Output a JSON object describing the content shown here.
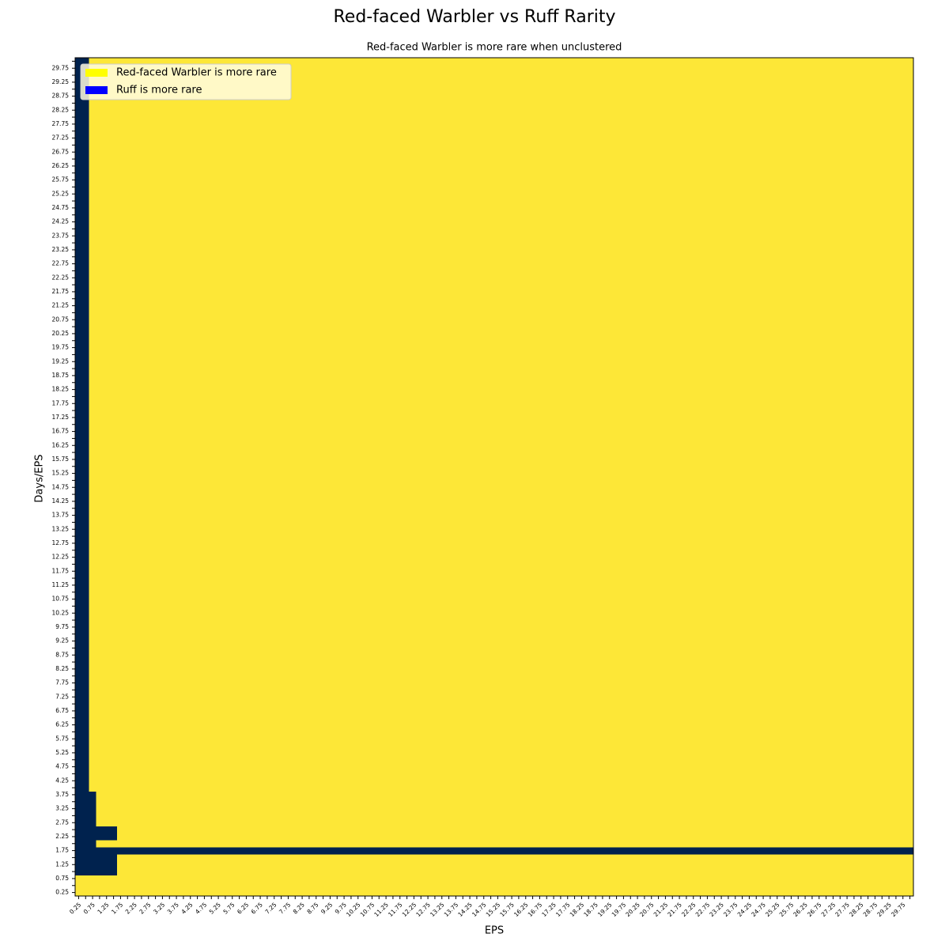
{
  "chart_data": {
    "type": "heatmap",
    "title": "Red-faced Warbler vs Ruff Rarity",
    "subtitle": "Red-faced Warbler is more rare when unclustered",
    "xlabel": "EPS",
    "ylabel": "Days/EPS",
    "legend": [
      {
        "name": "Red-faced Warbler is more rare",
        "color": "#ffff00"
      },
      {
        "name": "Ruff is more rare",
        "color": "#0000ff"
      }
    ],
    "legend_position": "upper left",
    "cell_colors": [
      "#fde737",
      "#00224e"
    ],
    "x": [
      0.25,
      null,
      0.75,
      null,
      1.25,
      null,
      1.75,
      null,
      2.25,
      null,
      2.75,
      null,
      3.25,
      null,
      3.75,
      null,
      4.25,
      null,
      4.75,
      null,
      5.25,
      null,
      5.75,
      null,
      6.25,
      null,
      6.75,
      null,
      7.25,
      null,
      7.75,
      null,
      8.25,
      null,
      8.75,
      null,
      9.25,
      null,
      9.75,
      null,
      10.25,
      null,
      10.75,
      null,
      11.25,
      null,
      11.75,
      null,
      12.25,
      null,
      12.75,
      null,
      13.25,
      null,
      13.75,
      null,
      14.25,
      null,
      14.75,
      null,
      15.25,
      null,
      15.75,
      null,
      16.25,
      null,
      16.75,
      null,
      17.25,
      null,
      17.75,
      null,
      18.25,
      null,
      18.75,
      null,
      19.25,
      null,
      19.75,
      null,
      20.25,
      null,
      20.75,
      null,
      21.25,
      null,
      21.75,
      null,
      22.25,
      null,
      22.75,
      null,
      23.25,
      null,
      23.75,
      null,
      24.25,
      null,
      24.75,
      null,
      25.25,
      null,
      25.75,
      null,
      26.25,
      null,
      26.75,
      null,
      27.25,
      null,
      27.75,
      null,
      28.25,
      null,
      28.75,
      null,
      29.25,
      null,
      29.75,
      null
    ],
    "y": [
      0.25,
      null,
      0.75,
      null,
      1.25,
      null,
      1.75,
      null,
      2.25,
      null,
      2.75,
      null,
      3.25,
      null,
      3.75,
      null,
      4.25,
      null,
      4.75,
      null,
      5.25,
      null,
      5.75,
      null,
      6.25,
      null,
      6.75,
      null,
      7.25,
      null,
      7.75,
      null,
      8.25,
      null,
      8.75,
      null,
      9.25,
      null,
      9.75,
      null,
      10.25,
      null,
      10.75,
      null,
      11.25,
      null,
      11.75,
      null,
      12.25,
      null,
      12.75,
      null,
      13.25,
      null,
      13.75,
      null,
      14.25,
      null,
      14.75,
      null,
      15.25,
      null,
      15.75,
      null,
      16.25,
      null,
      16.75,
      null,
      17.25,
      null,
      17.75,
      null,
      18.25,
      null,
      18.75,
      null,
      19.25,
      null,
      19.75,
      null,
      20.25,
      null,
      20.75,
      null,
      21.25,
      null,
      21.75,
      null,
      22.25,
      null,
      22.75,
      null,
      23.25,
      null,
      23.75,
      null,
      24.25,
      null,
      24.75,
      null,
      25.25,
      null,
      25.75,
      null,
      26.25,
      null,
      26.75,
      null,
      27.25,
      null,
      27.75,
      null,
      28.25,
      null,
      28.75,
      null,
      29.25,
      null,
      29.75,
      null
    ],
    "z": [
      "000000000000000000000000000000000000000000000000000000000000000000000000000000000000000000000000000000000000000000000000",
      "000000000000000000000000000000000000000000000000000000000000000000000000000000000000000000000000000000000000000000000000",
      "000000000000000000000000000000000000000000000000000000000000000000000000000000000000000000000000000000000000000000000000",
      "111111000000000000000000000000000000000000000000000000000000000000000000000000000000000000000000000000000000000000000000",
      "111111000000000000000000000000000000000000000000000000000000000000000000000000000000000000000000000000000000000000000000",
      "111111000000000000000000000000000000000000000000000000000000000000000000000000000000000000000000000000000000000000000000",
      "111111111111111111111111111111111111111111111111111111111111111111111111111111111111111111111111111111111111111111111111",
      "111000000000000000000000000000000000000000000000000000000000000000000000000000000000000000000000000000000000000000000000",
      "111111000000000000000000000000000000000000000000000000000000000000000000000000000000000000000000000000000000000000000000",
      "111111000000000000000000000000000000000000000000000000000000000000000000000000000000000000000000000000000000000000000000",
      "111000000000000000000000000000000000000000000000000000000000000000000000000000000000000000000000000000000000000000000000",
      "111000000000000000000000000000000000000000000000000000000000000000000000000000000000000000000000000000000000000000000000",
      "111000000000000000000000000000000000000000000000000000000000000000000000000000000000000000000000000000000000000000000000",
      "111000000000000000000000000000000000000000000000000000000000000000000000000000000000000000000000000000000000000000000000",
      "111000000000000000000000000000000000000000000000000000000000000000000000000000000000000000000000000000000000000000000000",
      "110000000000000000000000000000000000000000000000000000000000000000000000000000000000000000000000000000000000000000000000",
      "110000000000000000000000000000000000000000000000000000000000000000000000000000000000000000000000000000000000000000000000",
      "110000000000000000000000000000000000000000000000000000000000000000000000000000000000000000000000000000000000000000000000",
      "110000000000000000000000000000000000000000000000000000000000000000000000000000000000000000000000000000000000000000000000",
      "110000000000000000000000000000000000000000000000000000000000000000000000000000000000000000000000000000000000000000000000",
      "110000000000000000000000000000000000000000000000000000000000000000000000000000000000000000000000000000000000000000000000",
      "110000000000000000000000000000000000000000000000000000000000000000000000000000000000000000000000000000000000000000000000",
      "110000000000000000000000000000000000000000000000000000000000000000000000000000000000000000000000000000000000000000000000",
      "110000000000000000000000000000000000000000000000000000000000000000000000000000000000000000000000000000000000000000000000",
      "110000000000000000000000000000000000000000000000000000000000000000000000000000000000000000000000000000000000000000000000",
      "110000000000000000000000000000000000000000000000000000000000000000000000000000000000000000000000000000000000000000000000",
      "110000000000000000000000000000000000000000000000000000000000000000000000000000000000000000000000000000000000000000000000",
      "110000000000000000000000000000000000000000000000000000000000000000000000000000000000000000000000000000000000000000000000",
      "110000000000000000000000000000000000000000000000000000000000000000000000000000000000000000000000000000000000000000000000",
      "110000000000000000000000000000000000000000000000000000000000000000000000000000000000000000000000000000000000000000000000",
      "110000000000000000000000000000000000000000000000000000000000000000000000000000000000000000000000000000000000000000000000",
      "110000000000000000000000000000000000000000000000000000000000000000000000000000000000000000000000000000000000000000000000",
      "110000000000000000000000000000000000000000000000000000000000000000000000000000000000000000000000000000000000000000000000",
      "110000000000000000000000000000000000000000000000000000000000000000000000000000000000000000000000000000000000000000000000",
      "110000000000000000000000000000000000000000000000000000000000000000000000000000000000000000000000000000000000000000000000",
      "110000000000000000000000000000000000000000000000000000000000000000000000000000000000000000000000000000000000000000000000",
      "110000000000000000000000000000000000000000000000000000000000000000000000000000000000000000000000000000000000000000000000",
      "110000000000000000000000000000000000000000000000000000000000000000000000000000000000000000000000000000000000000000000000",
      "110000000000000000000000000000000000000000000000000000000000000000000000000000000000000000000000000000000000000000000000",
      "110000000000000000000000000000000000000000000000000000000000000000000000000000000000000000000000000000000000000000000000",
      "110000000000000000000000000000000000000000000000000000000000000000000000000000000000000000000000000000000000000000000000",
      "110000000000000000000000000000000000000000000000000000000000000000000000000000000000000000000000000000000000000000000000",
      "110000000000000000000000000000000000000000000000000000000000000000000000000000000000000000000000000000000000000000000000",
      "110000000000000000000000000000000000000000000000000000000000000000000000000000000000000000000000000000000000000000000000",
      "110000000000000000000000000000000000000000000000000000000000000000000000000000000000000000000000000000000000000000000000",
      "110000000000000000000000000000000000000000000000000000000000000000000000000000000000000000000000000000000000000000000000",
      "110000000000000000000000000000000000000000000000000000000000000000000000000000000000000000000000000000000000000000000000",
      "110000000000000000000000000000000000000000000000000000000000000000000000000000000000000000000000000000000000000000000000",
      "110000000000000000000000000000000000000000000000000000000000000000000000000000000000000000000000000000000000000000000000",
      "110000000000000000000000000000000000000000000000000000000000000000000000000000000000000000000000000000000000000000000000",
      "110000000000000000000000000000000000000000000000000000000000000000000000000000000000000000000000000000000000000000000000",
      "110000000000000000000000000000000000000000000000000000000000000000000000000000000000000000000000000000000000000000000000",
      "110000000000000000000000000000000000000000000000000000000000000000000000000000000000000000000000000000000000000000000000",
      "110000000000000000000000000000000000000000000000000000000000000000000000000000000000000000000000000000000000000000000000",
      "110000000000000000000000000000000000000000000000000000000000000000000000000000000000000000000000000000000000000000000000",
      "110000000000000000000000000000000000000000000000000000000000000000000000000000000000000000000000000000000000000000000000",
      "110000000000000000000000000000000000000000000000000000000000000000000000000000000000000000000000000000000000000000000000",
      "110000000000000000000000000000000000000000000000000000000000000000000000000000000000000000000000000000000000000000000000",
      "110000000000000000000000000000000000000000000000000000000000000000000000000000000000000000000000000000000000000000000000",
      "110000000000000000000000000000000000000000000000000000000000000000000000000000000000000000000000000000000000000000000000",
      "110000000000000000000000000000000000000000000000000000000000000000000000000000000000000000000000000000000000000000000000",
      "110000000000000000000000000000000000000000000000000000000000000000000000000000000000000000000000000000000000000000000000",
      "110000000000000000000000000000000000000000000000000000000000000000000000000000000000000000000000000000000000000000000000",
      "110000000000000000000000000000000000000000000000000000000000000000000000000000000000000000000000000000000000000000000000",
      "110000000000000000000000000000000000000000000000000000000000000000000000000000000000000000000000000000000000000000000000",
      "110000000000000000000000000000000000000000000000000000000000000000000000000000000000000000000000000000000000000000000000",
      "110000000000000000000000000000000000000000000000000000000000000000000000000000000000000000000000000000000000000000000000",
      "110000000000000000000000000000000000000000000000000000000000000000000000000000000000000000000000000000000000000000000000",
      "110000000000000000000000000000000000000000000000000000000000000000000000000000000000000000000000000000000000000000000000",
      "110000000000000000000000000000000000000000000000000000000000000000000000000000000000000000000000000000000000000000000000",
      "110000000000000000000000000000000000000000000000000000000000000000000000000000000000000000000000000000000000000000000000",
      "110000000000000000000000000000000000000000000000000000000000000000000000000000000000000000000000000000000000000000000000",
      "110000000000000000000000000000000000000000000000000000000000000000000000000000000000000000000000000000000000000000000000",
      "110000000000000000000000000000000000000000000000000000000000000000000000000000000000000000000000000000000000000000000000",
      "110000000000000000000000000000000000000000000000000000000000000000000000000000000000000000000000000000000000000000000000",
      "110000000000000000000000000000000000000000000000000000000000000000000000000000000000000000000000000000000000000000000000",
      "110000000000000000000000000000000000000000000000000000000000000000000000000000000000000000000000000000000000000000000000",
      "110000000000000000000000000000000000000000000000000000000000000000000000000000000000000000000000000000000000000000000000",
      "110000000000000000000000000000000000000000000000000000000000000000000000000000000000000000000000000000000000000000000000",
      "110000000000000000000000000000000000000000000000000000000000000000000000000000000000000000000000000000000000000000000000",
      "110000000000000000000000000000000000000000000000000000000000000000000000000000000000000000000000000000000000000000000000",
      "110000000000000000000000000000000000000000000000000000000000000000000000000000000000000000000000000000000000000000000000",
      "110000000000000000000000000000000000000000000000000000000000000000000000000000000000000000000000000000000000000000000000",
      "110000000000000000000000000000000000000000000000000000000000000000000000000000000000000000000000000000000000000000000000",
      "110000000000000000000000000000000000000000000000000000000000000000000000000000000000000000000000000000000000000000000000",
      "110000000000000000000000000000000000000000000000000000000000000000000000000000000000000000000000000000000000000000000000",
      "110000000000000000000000000000000000000000000000000000000000000000000000000000000000000000000000000000000000000000000000",
      "110000000000000000000000000000000000000000000000000000000000000000000000000000000000000000000000000000000000000000000000",
      "110000000000000000000000000000000000000000000000000000000000000000000000000000000000000000000000000000000000000000000000",
      "110000000000000000000000000000000000000000000000000000000000000000000000000000000000000000000000000000000000000000000000",
      "110000000000000000000000000000000000000000000000000000000000000000000000000000000000000000000000000000000000000000000000",
      "110000000000000000000000000000000000000000000000000000000000000000000000000000000000000000000000000000000000000000000000",
      "110000000000000000000000000000000000000000000000000000000000000000000000000000000000000000000000000000000000000000000000",
      "110000000000000000000000000000000000000000000000000000000000000000000000000000000000000000000000000000000000000000000000",
      "110000000000000000000000000000000000000000000000000000000000000000000000000000000000000000000000000000000000000000000000",
      "110000000000000000000000000000000000000000000000000000000000000000000000000000000000000000000000000000000000000000000000",
      "110000000000000000000000000000000000000000000000000000000000000000000000000000000000000000000000000000000000000000000000",
      "110000000000000000000000000000000000000000000000000000000000000000000000000000000000000000000000000000000000000000000000",
      "110000000000000000000000000000000000000000000000000000000000000000000000000000000000000000000000000000000000000000000000",
      "110000000000000000000000000000000000000000000000000000000000000000000000000000000000000000000000000000000000000000000000",
      "110000000000000000000000000000000000000000000000000000000000000000000000000000000000000000000000000000000000000000000000",
      "110000000000000000000000000000000000000000000000000000000000000000000000000000000000000000000000000000000000000000000000",
      "110000000000000000000000000000000000000000000000000000000000000000000000000000000000000000000000000000000000000000000000",
      "110000000000000000000000000000000000000000000000000000000000000000000000000000000000000000000000000000000000000000000000",
      "110000000000000000000000000000000000000000000000000000000000000000000000000000000000000000000000000000000000000000000000",
      "110000000000000000000000000000000000000000000000000000000000000000000000000000000000000000000000000000000000000000000000",
      "110000000000000000000000000000000000000000000000000000000000000000000000000000000000000000000000000000000000000000000000",
      "110000000000000000000000000000000000000000000000000000000000000000000000000000000000000000000000000000000000000000000000",
      "110000000000000000000000000000000000000000000000000000000000000000000000000000000000000000000000000000000000000000000000",
      "110000000000000000000000000000000000000000000000000000000000000000000000000000000000000000000000000000000000000000000000",
      "110000000000000000000000000000000000000000000000000000000000000000000000000000000000000000000000000000000000000000000000",
      "110000000000000000000000000000000000000000000000000000000000000000000000000000000000000000000000000000000000000000000000",
      "110000000000000000000000000000000000000000000000000000000000000000000000000000000000000000000000000000000000000000000000",
      "110000000000000000000000000000000000000000000000000000000000000000000000000000000000000000000000000000000000000000000000",
      "110000000000000000000000000000000000000000000000000000000000000000000000000000000000000000000000000000000000000000000000",
      "110000000000000000000000000000000000000000000000000000000000000000000000000000000000000000000000000000000000000000000000",
      "110000000000000000000000000000000000000000000000000000000000000000000000000000000000000000000000000000000000000000000000",
      "110000000000000000000000000000000000000000000000000000000000000000000000000000000000000000000000000000000000000000000000",
      "110000000000000000000000000000000000000000000000000000000000000000000000000000000000000000000000000000000000000000000000",
      "110000000000000000000000000000000000000000000000000000000000000000000000000000000000000000000000000000000000000000000000"
    ]
  }
}
